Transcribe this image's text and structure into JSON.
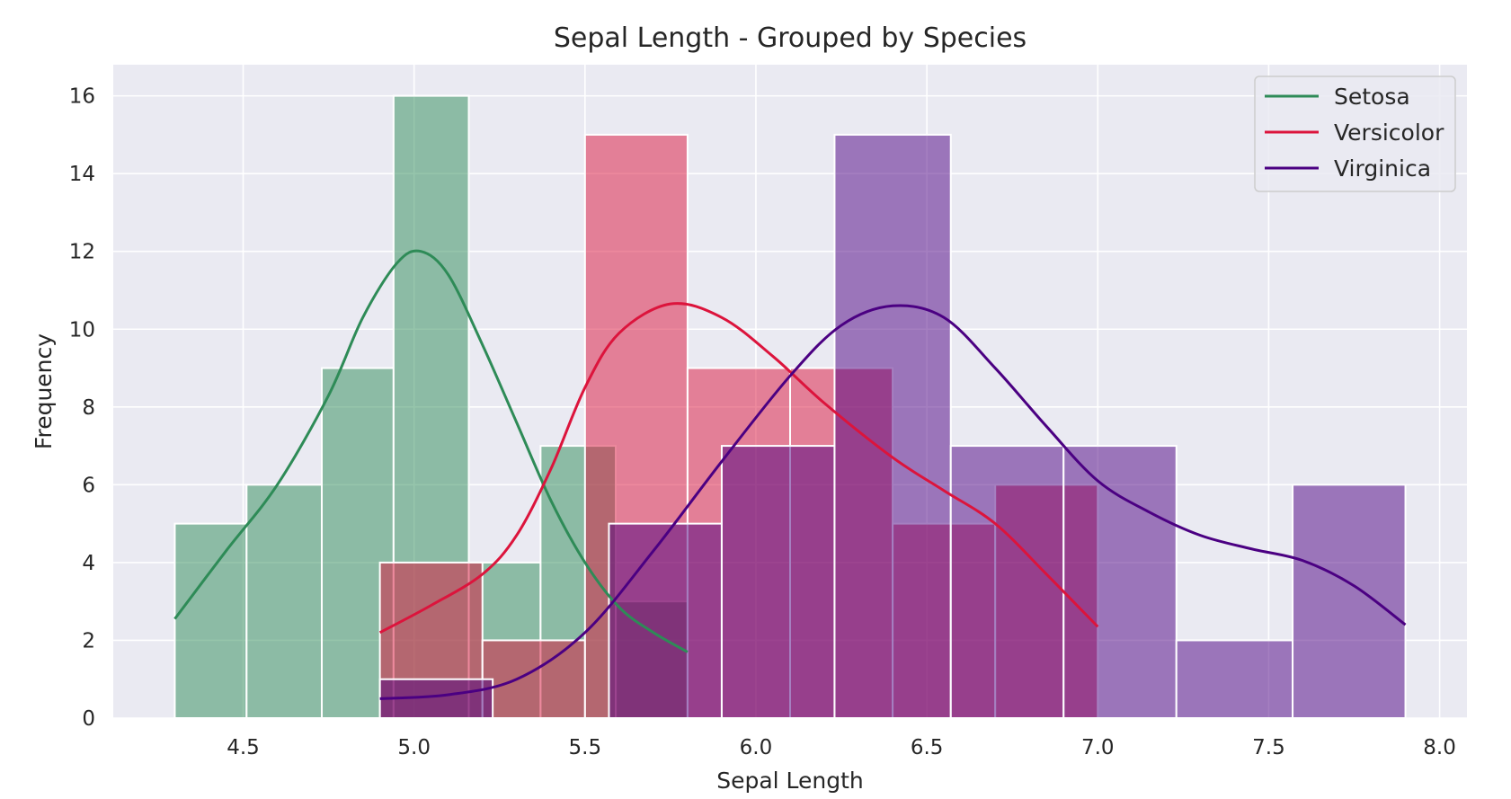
{
  "chart_data": {
    "type": "histogram",
    "title": "Sepal Length - Grouped by Species",
    "xlabel": "Sepal Length",
    "ylabel": "Frequency",
    "xlim": [
      4.12,
      8.08
    ],
    "ylim": [
      0,
      16.8
    ],
    "xticks": [
      4.5,
      5.0,
      5.5,
      6.0,
      6.5,
      7.0,
      7.5,
      8.0
    ],
    "xtick_labels": [
      "4.5",
      "5.0",
      "5.5",
      "6.0",
      "6.5",
      "7.0",
      "7.5",
      "8.0"
    ],
    "yticks": [
      0,
      2,
      4,
      6,
      8,
      10,
      12,
      14,
      16
    ],
    "ytick_labels": [
      "0",
      "2",
      "4",
      "6",
      "8",
      "10",
      "12",
      "14",
      "16"
    ],
    "grid": true,
    "legend_position": "top-right",
    "series": [
      {
        "name": "Setosa",
        "color": "#2e8b57",
        "bins": [
          {
            "x0": 4.3,
            "x1": 4.51,
            "count": 5
          },
          {
            "x0": 4.51,
            "x1": 4.73,
            "count": 6
          },
          {
            "x0": 4.73,
            "x1": 4.94,
            "count": 9
          },
          {
            "x0": 4.94,
            "x1": 5.16,
            "count": 16
          },
          {
            "x0": 5.16,
            "x1": 5.37,
            "count": 4
          },
          {
            "x0": 5.37,
            "x1": 5.59,
            "count": 7
          },
          {
            "x0": 5.59,
            "x1": 5.8,
            "count": 3
          }
        ],
        "kde": [
          [
            4.3,
            2.55
          ],
          [
            4.45,
            4.3
          ],
          [
            4.6,
            6.0
          ],
          [
            4.75,
            8.3
          ],
          [
            4.85,
            10.3
          ],
          [
            4.95,
            11.7
          ],
          [
            5.02,
            12.0
          ],
          [
            5.1,
            11.4
          ],
          [
            5.2,
            9.6
          ],
          [
            5.3,
            7.6
          ],
          [
            5.4,
            5.6
          ],
          [
            5.5,
            4.0
          ],
          [
            5.6,
            2.85
          ],
          [
            5.7,
            2.2
          ],
          [
            5.8,
            1.7
          ]
        ]
      },
      {
        "name": "Versicolor",
        "color": "#dc143c",
        "bins": [
          {
            "x0": 4.9,
            "x1": 5.2,
            "count": 4
          },
          {
            "x0": 5.2,
            "x1": 5.5,
            "count": 2
          },
          {
            "x0": 5.5,
            "x1": 5.8,
            "count": 15
          },
          {
            "x0": 5.8,
            "x1": 6.1,
            "count": 9
          },
          {
            "x0": 6.1,
            "x1": 6.4,
            "count": 9
          },
          {
            "x0": 6.4,
            "x1": 6.7,
            "count": 5
          },
          {
            "x0": 6.7,
            "x1": 7.0,
            "count": 6
          }
        ],
        "kde": [
          [
            4.9,
            2.2
          ],
          [
            5.05,
            2.9
          ],
          [
            5.2,
            3.7
          ],
          [
            5.3,
            4.7
          ],
          [
            5.4,
            6.4
          ],
          [
            5.5,
            8.5
          ],
          [
            5.6,
            9.9
          ],
          [
            5.75,
            10.65
          ],
          [
            5.9,
            10.3
          ],
          [
            6.05,
            9.3
          ],
          [
            6.2,
            8.1
          ],
          [
            6.4,
            6.7
          ],
          [
            6.55,
            5.85
          ],
          [
            6.7,
            5.0
          ],
          [
            6.85,
            3.7
          ],
          [
            7.0,
            2.35
          ]
        ]
      },
      {
        "name": "Virginica",
        "color": "#4b0082",
        "bins": [
          {
            "x0": 4.9,
            "x1": 5.23,
            "count": 1
          },
          {
            "x0": 5.23,
            "x1": 5.57,
            "count": 0
          },
          {
            "x0": 5.57,
            "x1": 5.9,
            "count": 5
          },
          {
            "x0": 5.9,
            "x1": 6.23,
            "count": 7
          },
          {
            "x0": 6.23,
            "x1": 6.57,
            "count": 15
          },
          {
            "x0": 6.57,
            "x1": 6.9,
            "count": 7
          },
          {
            "x0": 6.9,
            "x1": 7.23,
            "count": 7
          },
          {
            "x0": 7.23,
            "x1": 7.57,
            "count": 2
          },
          {
            "x0": 7.57,
            "x1": 7.9,
            "count": 6
          }
        ],
        "kde": [
          [
            4.9,
            0.5
          ],
          [
            5.1,
            0.6
          ],
          [
            5.3,
            1.0
          ],
          [
            5.5,
            2.2
          ],
          [
            5.7,
            4.3
          ],
          [
            5.9,
            6.6
          ],
          [
            6.1,
            8.8
          ],
          [
            6.25,
            10.1
          ],
          [
            6.4,
            10.6
          ],
          [
            6.55,
            10.3
          ],
          [
            6.7,
            9.0
          ],
          [
            6.85,
            7.5
          ],
          [
            7.0,
            6.1
          ],
          [
            7.15,
            5.3
          ],
          [
            7.3,
            4.7
          ],
          [
            7.45,
            4.35
          ],
          [
            7.6,
            4.05
          ],
          [
            7.75,
            3.4
          ],
          [
            7.9,
            2.4
          ]
        ]
      }
    ]
  }
}
